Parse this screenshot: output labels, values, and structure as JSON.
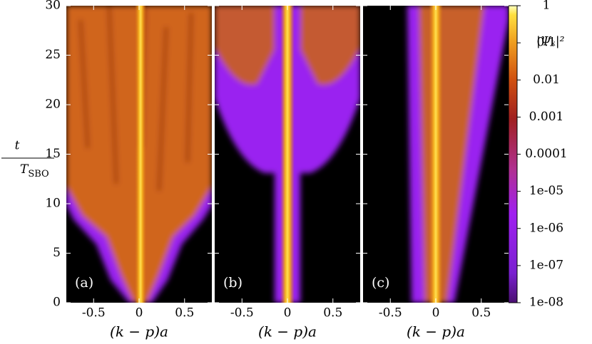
{
  "chart_data": {
    "type": "heatmap",
    "panels": [
      "(a)",
      "(b)",
      "(c)"
    ],
    "x_label": "(k − p)a",
    "y_label_numerator": "t",
    "y_label_denominator": "T",
    "y_label_subscript": "SBO",
    "colorbar_label": "|Ψₖ|²",
    "xlim": [
      -0.8,
      0.8
    ],
    "xticks": [
      -0.5,
      0,
      0.5
    ],
    "ylim": [
      0,
      30
    ],
    "yticks": [
      0,
      5,
      10,
      15,
      20,
      25,
      30
    ],
    "color_scale": "log",
    "clim": [
      1e-08,
      1
    ],
    "cticks": [
      1,
      0.1,
      0.01,
      0.001,
      0.0001,
      {
        "value": 1e-05,
        "label": "1e-05"
      },
      {
        "value": 1e-06,
        "label": "1e-06"
      },
      {
        "value": 1e-07,
        "label": "1e-07"
      },
      {
        "value": 1e-08,
        "label": "1e-08"
      }
    ]
  }
}
